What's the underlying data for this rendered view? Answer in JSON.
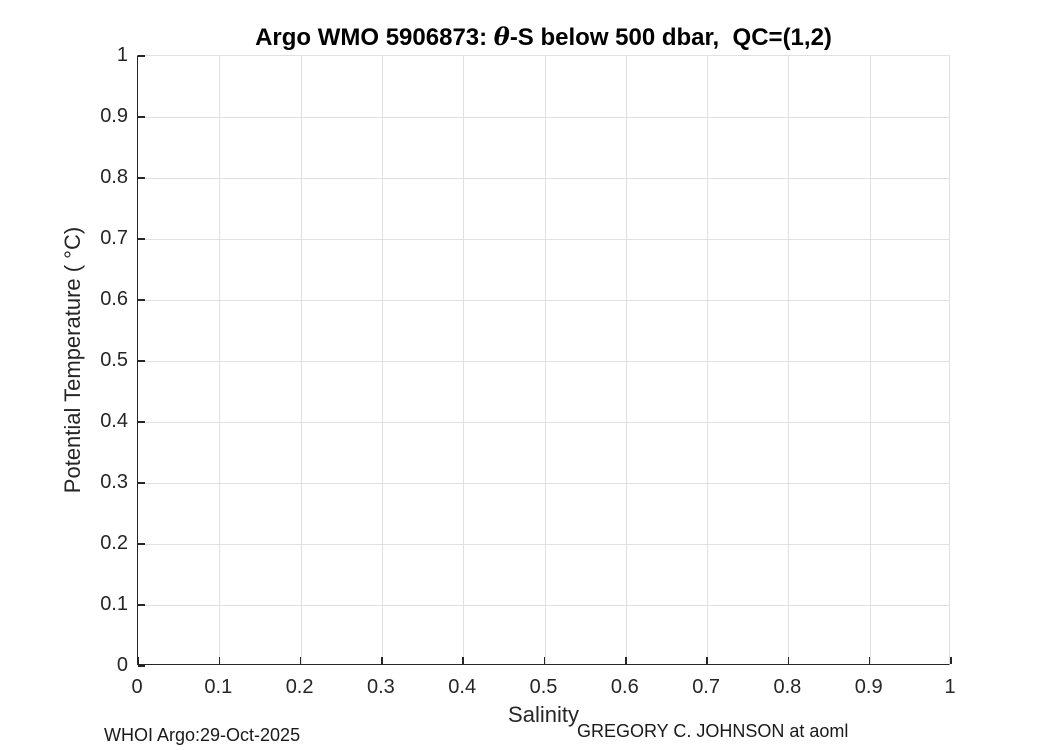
{
  "chart_data": {
    "type": "scatter",
    "title": "Argo WMO 5906873: θ-S below 500 dbar,  QC=(1,2)",
    "title_prefix": "Argo WMO 5906873: ",
    "title_theta": "θ",
    "title_suffix": "-S below 500 dbar,  QC=(1,2)",
    "xlabel": "Salinity",
    "ylabel": "Potential Temperature ( °C)",
    "xlim": [
      0,
      1
    ],
    "ylim": [
      0,
      1
    ],
    "xticks": [
      0,
      0.1,
      0.2,
      0.3,
      0.4,
      0.5,
      0.6,
      0.7,
      0.8,
      0.9,
      1
    ],
    "yticks": [
      0,
      0.1,
      0.2,
      0.3,
      0.4,
      0.5,
      0.6,
      0.7,
      0.8,
      0.9,
      1
    ],
    "xtick_labels": [
      "0",
      "0.1",
      "0.2",
      "0.3",
      "0.4",
      "0.5",
      "0.6",
      "0.7",
      "0.8",
      "0.9",
      "1"
    ],
    "ytick_labels": [
      "0",
      "0.1",
      "0.2",
      "0.3",
      "0.4",
      "0.5",
      "0.6",
      "0.7",
      "0.8",
      "0.9",
      "1"
    ],
    "grid": true,
    "legend": null,
    "series": []
  },
  "footer": {
    "left": "WHOI Argo:29-Oct-2025",
    "right": "GREGORY C. JOHNSON at aoml"
  },
  "colors": {
    "axis": "#262626",
    "grid": "#e0e0e0",
    "tick_text": "#262626",
    "title_text": "#000000"
  }
}
